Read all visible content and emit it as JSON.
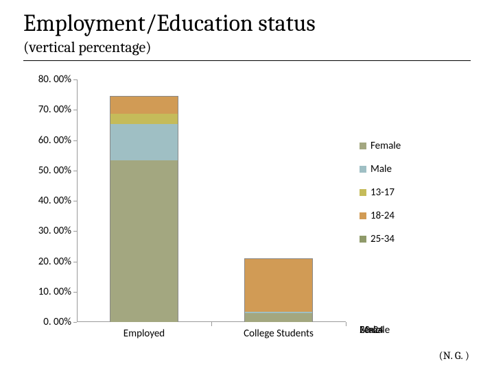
{
  "title": "Employment/Education status",
  "subtitle": "(vertical percentage)",
  "attribution": "(N. G. )",
  "chart": {
    "type": "stacked-bar",
    "ymax": 80,
    "ytick_step": 10,
    "tick_suffix": ". 00%",
    "background_color": "#ffffff",
    "axis_color": "#999999",
    "tick_fontsize": 15,
    "cat_fontsize": 15,
    "categories": [
      "Employed",
      "College Students"
    ],
    "series": [
      {
        "name": "Female",
        "color": "#a3a780"
      },
      {
        "name": "Male",
        "color": "#9fbfc4"
      },
      {
        "name": "13-17",
        "color": "#c5bb5a"
      },
      {
        "name": "18-24",
        "color": "#d19b55"
      },
      {
        "name": "25-34",
        "color": "#8f9a6a"
      }
    ],
    "stacks": [
      [
        53.5,
        12.0,
        3.5,
        5.5,
        0.0
      ],
      [
        3.0,
        0.5,
        0.0,
        17.5,
        0.0
      ]
    ],
    "overlapped_xlabels": [
      "Female",
      "20-24",
      "Male"
    ]
  }
}
